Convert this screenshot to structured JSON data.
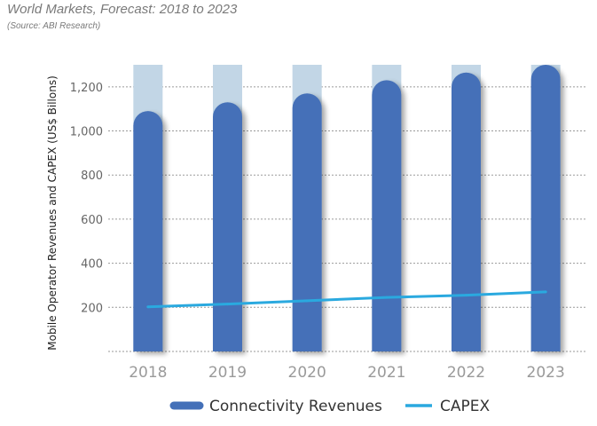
{
  "title": "World Markets, Forecast: 2018 to 2023",
  "subtitle": "(Source: ABI Research)",
  "colors": {
    "bar": "#4470b8",
    "bar_background": "#c2d6e6",
    "line": "#2aa9df",
    "grid": "#9a9a9a"
  },
  "chart_data": {
    "type": "bar",
    "categories": [
      "2018",
      "2019",
      "2020",
      "2021",
      "2022",
      "2023"
    ],
    "series": [
      {
        "name": "Connectivity Revenues",
        "type": "bar",
        "values": [
          1090,
          1130,
          1170,
          1230,
          1265,
          1300
        ]
      },
      {
        "name": "CAPEX",
        "type": "line",
        "values": [
          202,
          215,
          230,
          245,
          255,
          270
        ]
      }
    ],
    "xlabel": "",
    "ylabel": "Mobile Operator Revenues and CAPEX (US$ Billons)",
    "ylim": [
      0,
      1300
    ],
    "yticks": [
      200,
      400,
      600,
      800,
      "1,000",
      "1,200"
    ],
    "ytick_values": [
      200,
      400,
      600,
      800,
      1000,
      1200
    ],
    "grid": true,
    "legend": "bottom"
  }
}
